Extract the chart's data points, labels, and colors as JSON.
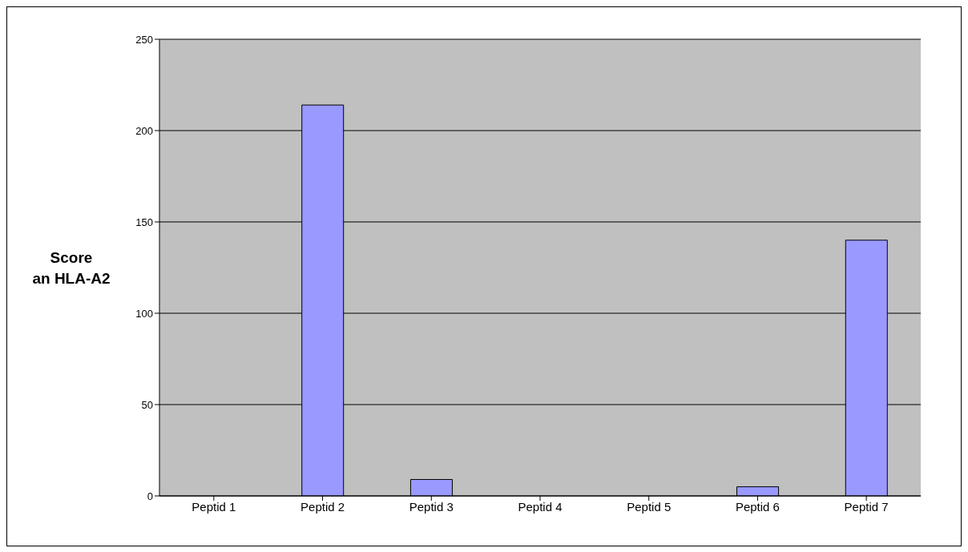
{
  "chart_data": {
    "type": "bar",
    "ylabel": "Score an HLA-A2",
    "categories": [
      "Peptid 1",
      "Peptid 2",
      "Peptid 3",
      "Peptid 4",
      "Peptid 5",
      "Peptid 6",
      "Peptid 7"
    ],
    "values": [
      0,
      214,
      9,
      0,
      0,
      5,
      140
    ],
    "color": "#9999ff",
    "ylim": [
      0,
      250
    ],
    "yticks": [
      0,
      50,
      100,
      150,
      200,
      250
    ],
    "grid": "y"
  }
}
